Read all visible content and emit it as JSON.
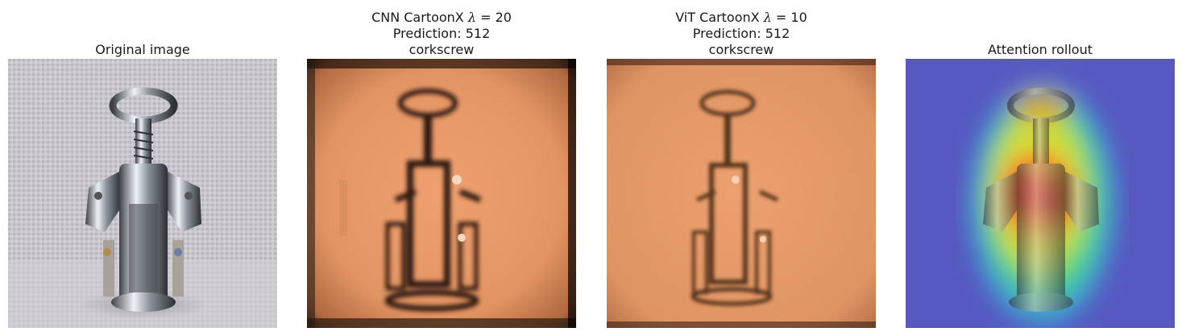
{
  "panels": [
    {
      "title_lines": [
        "Original image"
      ]
    },
    {
      "title_prefix": "CNN CartoonX ",
      "lambda_symbol": "λ",
      "lambda_value": " = 20",
      "title_lines": [
        "Prediction: 512",
        "corkscrew"
      ]
    },
    {
      "title_prefix": "ViT CartoonX ",
      "lambda_symbol": "λ",
      "lambda_value": " = 10",
      "title_lines": [
        "Prediction: 512",
        "corkscrew"
      ]
    },
    {
      "title_lines": [
        "Attention rollout"
      ]
    }
  ]
}
